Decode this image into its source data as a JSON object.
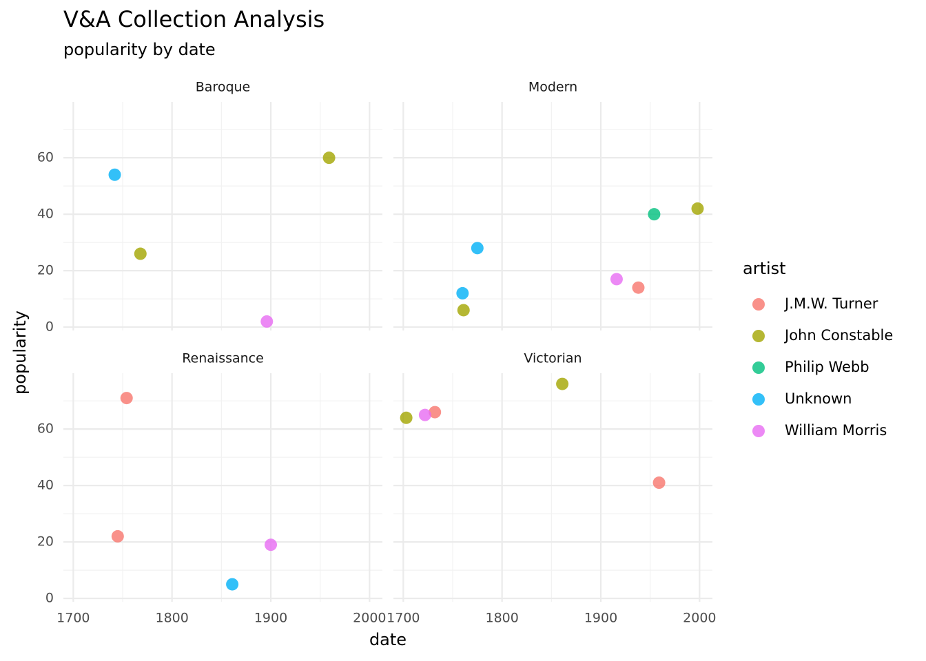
{
  "chart_data": {
    "type": "scatter",
    "title": "V&A Collection Analysis",
    "subtitle": "popularity by date",
    "x_label": "date",
    "y_label": "popularity",
    "legend_title": "artist",
    "legend": [
      {
        "name": "J.M.W. Turner",
        "color": "#F8766D"
      },
      {
        "name": "John Constable",
        "color": "#A3A500"
      },
      {
        "name": "Philip Webb",
        "color": "#00BF7D"
      },
      {
        "name": "Unknown",
        "color": "#00B0F6"
      },
      {
        "name": "William Morris",
        "color": "#E76BF3"
      }
    ],
    "xlim": [
      1690,
      2013
    ],
    "ylim": [
      -1.2,
      79.8
    ],
    "xticks": [
      1700,
      1800,
      1900,
      2000
    ],
    "yticks": [
      0,
      20,
      40,
      60
    ],
    "xminorticks": [
      1750,
      1850,
      1950
    ],
    "yminorticks": [
      10,
      30,
      50,
      70
    ],
    "grid": true,
    "facets": [
      {
        "title": "Baroque",
        "series": [
          {
            "name": "John Constable",
            "x": [
              1768,
              1959
            ],
            "values": [
              26,
              60
            ]
          },
          {
            "name": "Unknown",
            "x": [
              1742
            ],
            "values": [
              54
            ]
          },
          {
            "name": "William Morris",
            "x": [
              1896
            ],
            "values": [
              2
            ]
          }
        ]
      },
      {
        "title": "Modern",
        "series": [
          {
            "name": "J.M.W. Turner",
            "x": [
              1938
            ],
            "values": [
              14
            ]
          },
          {
            "name": "John Constable",
            "x": [
              1761,
              1998
            ],
            "values": [
              6,
              42
            ]
          },
          {
            "name": "Philip Webb",
            "x": [
              1954
            ],
            "values": [
              40
            ]
          },
          {
            "name": "Unknown",
            "x": [
              1760,
              1775
            ],
            "values": [
              12,
              28
            ]
          },
          {
            "name": "William Morris",
            "x": [
              1916
            ],
            "values": [
              17
            ]
          }
        ]
      },
      {
        "title": "Renaissance",
        "series": [
          {
            "name": "J.M.W. Turner",
            "x": [
              1754,
              1745
            ],
            "values": [
              71,
              22
            ]
          },
          {
            "name": "Unknown",
            "x": [
              1861
            ],
            "values": [
              5
            ]
          },
          {
            "name": "William Morris",
            "x": [
              1900
            ],
            "values": [
              19
            ]
          }
        ]
      },
      {
        "title": "Victorian",
        "series": [
          {
            "name": "J.M.W. Turner",
            "x": [
              1732,
              1959
            ],
            "values": [
              66,
              41
            ]
          },
          {
            "name": "John Constable",
            "x": [
              1703,
              1861
            ],
            "values": [
              64,
              76
            ]
          },
          {
            "name": "William Morris",
            "x": [
              1722
            ],
            "values": [
              65
            ]
          }
        ]
      }
    ]
  }
}
